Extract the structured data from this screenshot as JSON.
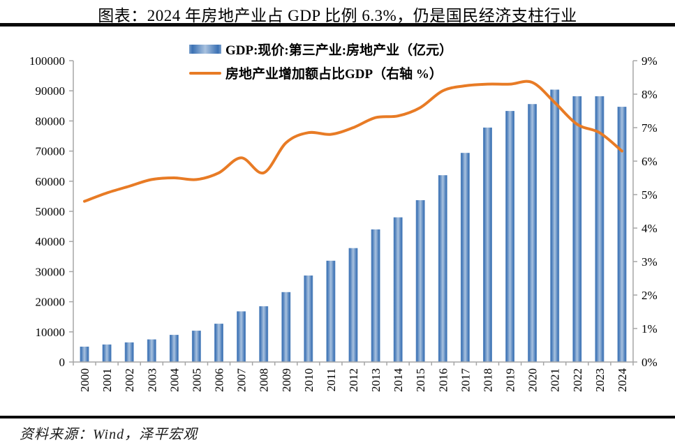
{
  "title": "图表：2024 年房地产业占 GDP 比例 6.3%，仍是国民经济支柱行业",
  "source": "资料来源：Wind，泽平宏观",
  "colors": {
    "bar_edge": "#3B71B4",
    "bar_mid": "#A9C2DF",
    "bar_outer": "#7AA0CC",
    "line": "#E87B25",
    "axis": "#A6A6A6",
    "rule": "#0A0A0A",
    "text": "#000000"
  },
  "chart_data": {
    "type": "bar",
    "subtype": "combo-bar-line",
    "categories": [
      "2000",
      "2001",
      "2002",
      "2003",
      "2004",
      "2005",
      "2006",
      "2007",
      "2008",
      "2009",
      "2010",
      "2011",
      "2012",
      "2013",
      "2014",
      "2015",
      "2016",
      "2017",
      "2018",
      "2019",
      "2020",
      "2021",
      "2022",
      "2023",
      "2024"
    ],
    "series": [
      {
        "name": "GDP:现价:第三产业:房地产业（亿元）",
        "type": "bar",
        "axis": "left",
        "values": [
          5100,
          5800,
          6500,
          7500,
          9000,
          10400,
          12700,
          16800,
          18500,
          23200,
          28700,
          33600,
          37800,
          44000,
          48000,
          53700,
          62000,
          69400,
          77800,
          83300,
          85600,
          90400,
          88200,
          88200,
          84700
        ]
      },
      {
        "name": "房地产业增加额占比GDP（右轴 %）",
        "type": "line",
        "axis": "right",
        "values": [
          4.8,
          5.05,
          5.25,
          5.45,
          5.5,
          5.45,
          5.65,
          6.1,
          5.65,
          6.55,
          6.85,
          6.8,
          7.0,
          7.3,
          7.35,
          7.6,
          8.1,
          8.25,
          8.3,
          8.3,
          8.35,
          7.75,
          7.1,
          6.85,
          6.3
        ]
      }
    ],
    "left_axis": {
      "min": 0,
      "max": 100000,
      "step": 10000
    },
    "right_axis": {
      "min": 0,
      "max": 9,
      "step": 1,
      "suffix": "%"
    },
    "legend_position": "top",
    "grid": false,
    "xlabel": "",
    "ylabel": ""
  }
}
